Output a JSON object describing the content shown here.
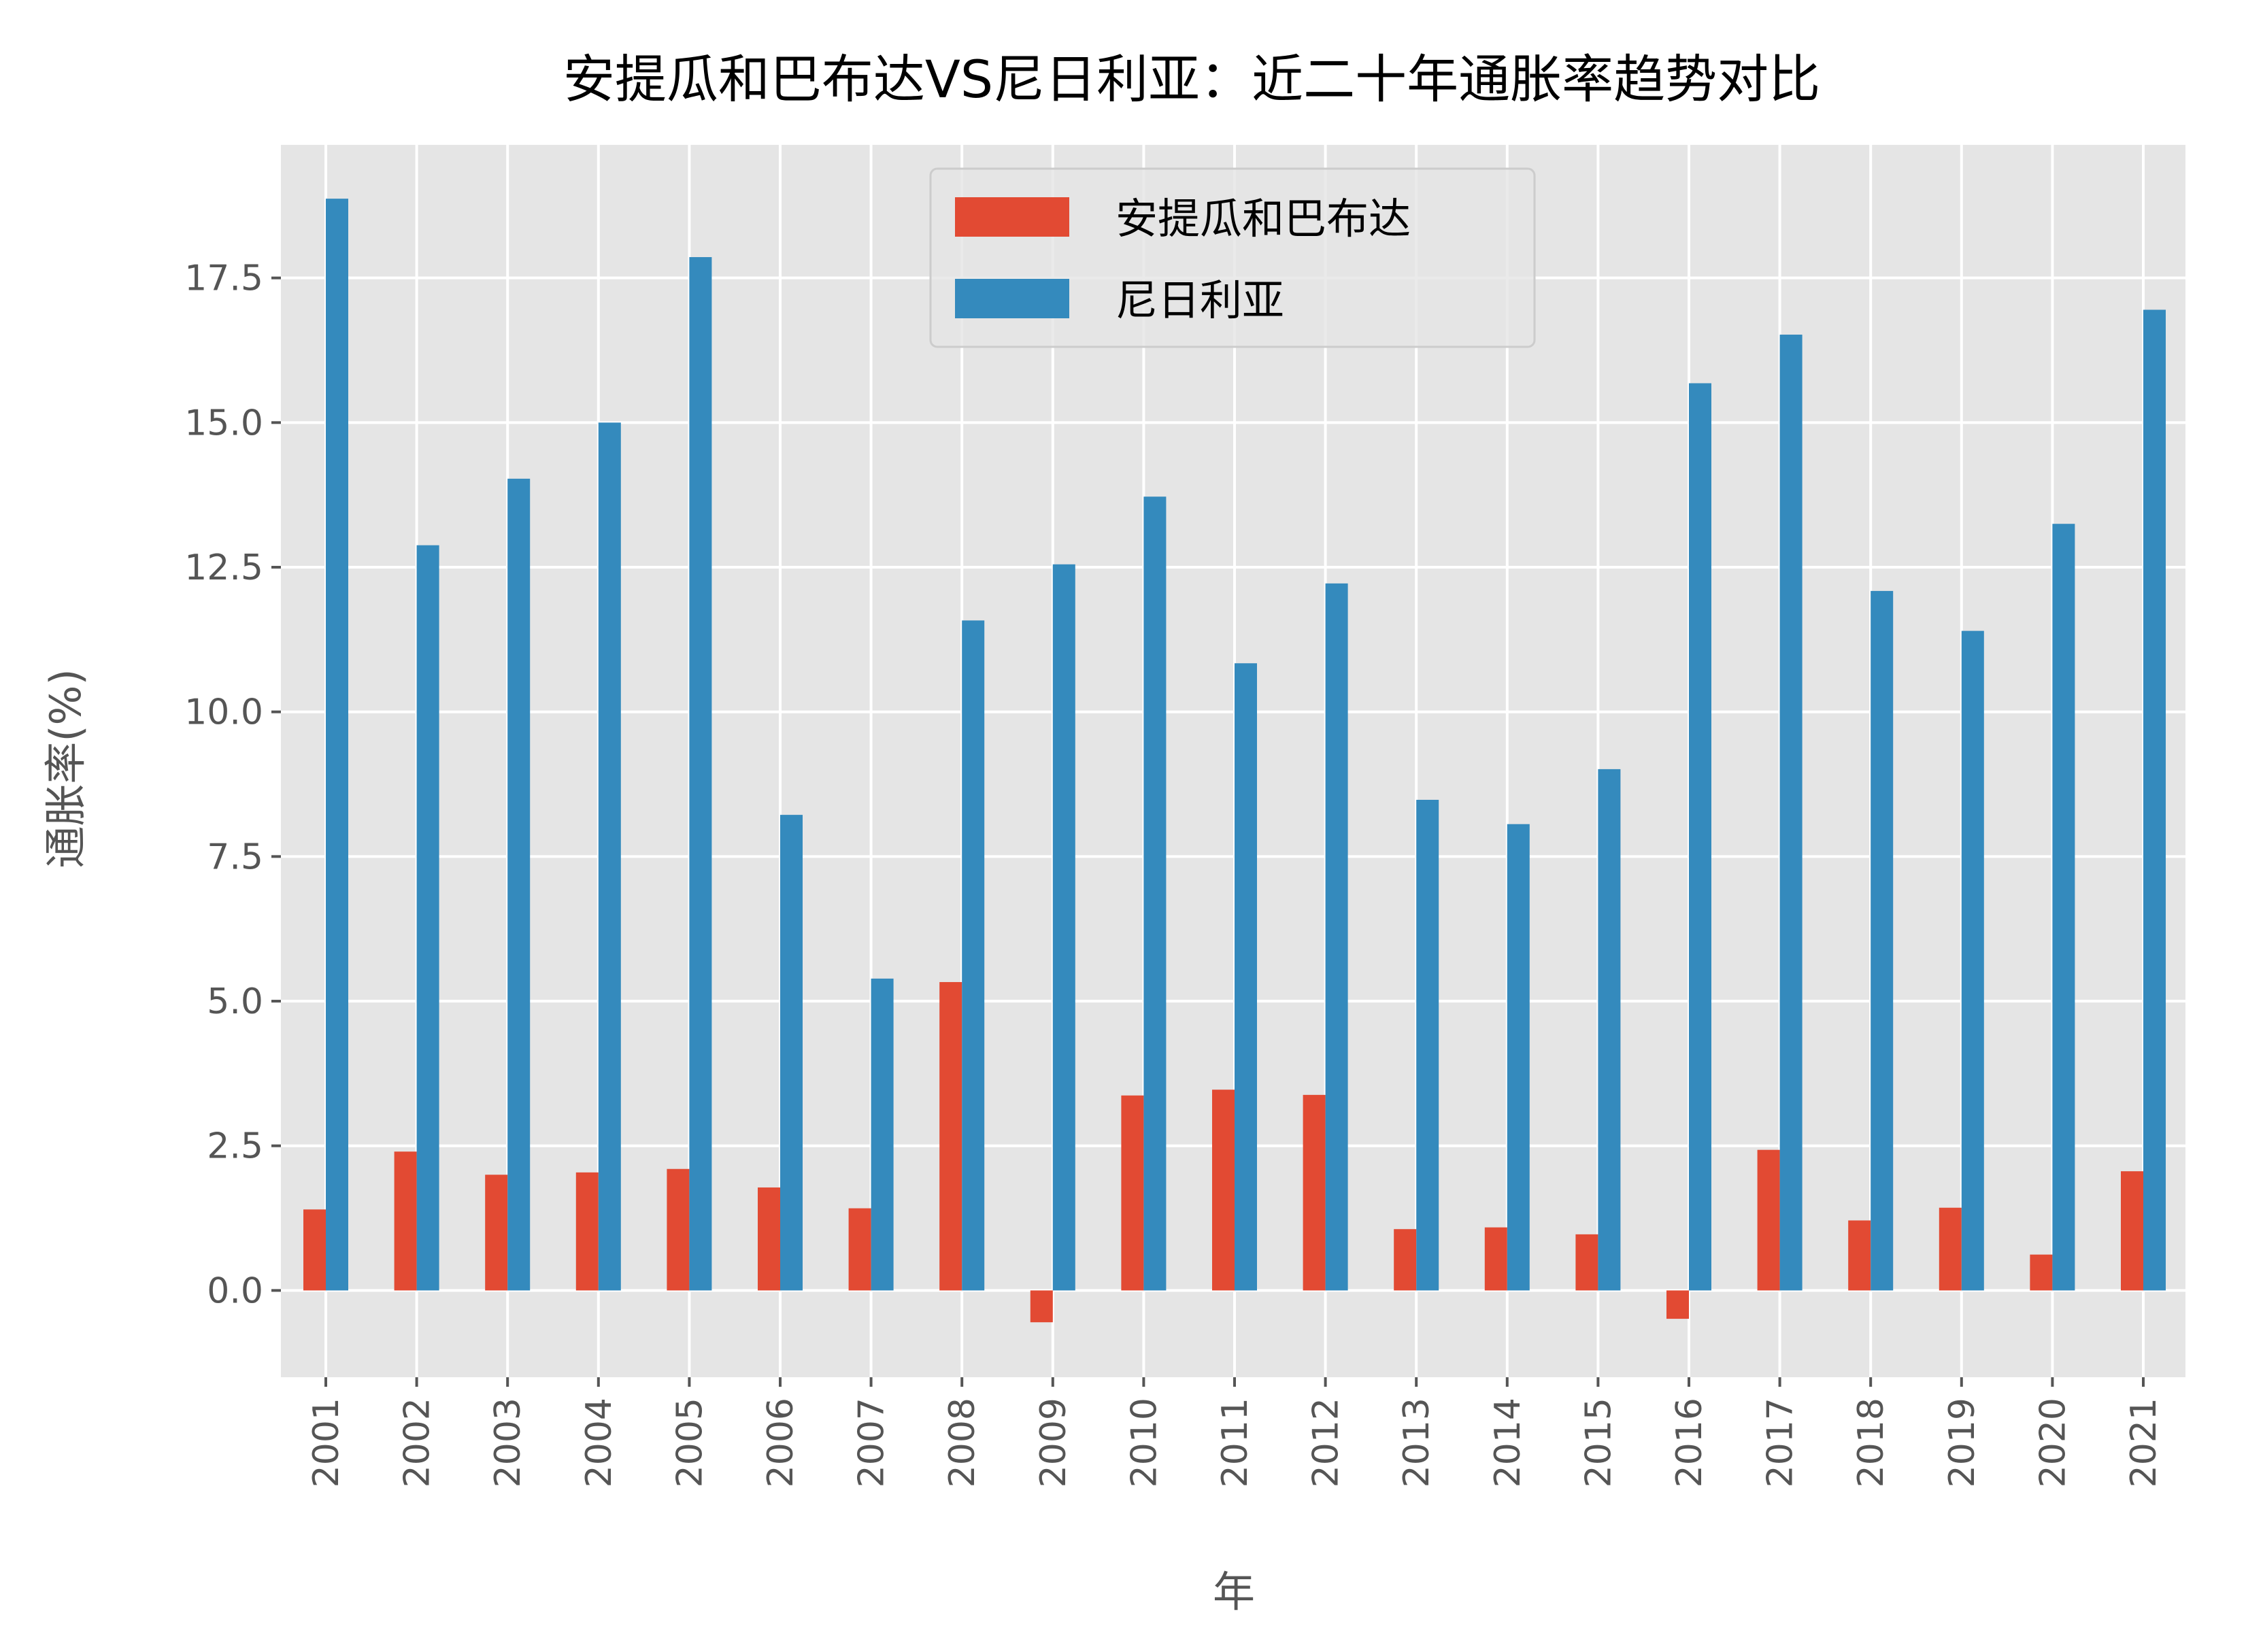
{
  "chart_data": {
    "type": "bar",
    "title": "安提瓜和巴布达VS尼日利亚：近二十年通胀率趋势对比",
    "xlabel": "年",
    "ylabel": "通胀率(%)",
    "ylim": [
      -1.5,
      19.8
    ],
    "yticks": [
      "0.0",
      "2.5",
      "5.0",
      "7.5",
      "10.0",
      "12.5",
      "15.0",
      "17.5"
    ],
    "grid": true,
    "legend_position": "top-center",
    "categories": [
      "2001",
      "2002",
      "2003",
      "2004",
      "2005",
      "2006",
      "2007",
      "2008",
      "2009",
      "2010",
      "2011",
      "2012",
      "2013",
      "2014",
      "2015",
      "2016",
      "2017",
      "2018",
      "2019",
      "2020",
      "2021"
    ],
    "series": [
      {
        "name": "安提瓜和巴布达",
        "color": "#E24A33",
        "values": [
          1.4,
          2.4,
          2.0,
          2.04,
          2.1,
          1.78,
          1.42,
          5.33,
          -0.55,
          3.37,
          3.47,
          3.38,
          1.06,
          1.09,
          0.97,
          -0.49,
          2.43,
          1.21,
          1.43,
          0.62,
          2.06
        ]
      },
      {
        "name": "尼日利亚",
        "color": "#348ABD",
        "values": [
          18.87,
          12.88,
          14.03,
          15.0,
          17.86,
          8.22,
          5.39,
          11.58,
          12.55,
          13.72,
          10.84,
          12.22,
          8.48,
          8.06,
          9.01,
          15.68,
          16.52,
          12.09,
          11.4,
          13.25,
          16.95
        ]
      }
    ]
  }
}
